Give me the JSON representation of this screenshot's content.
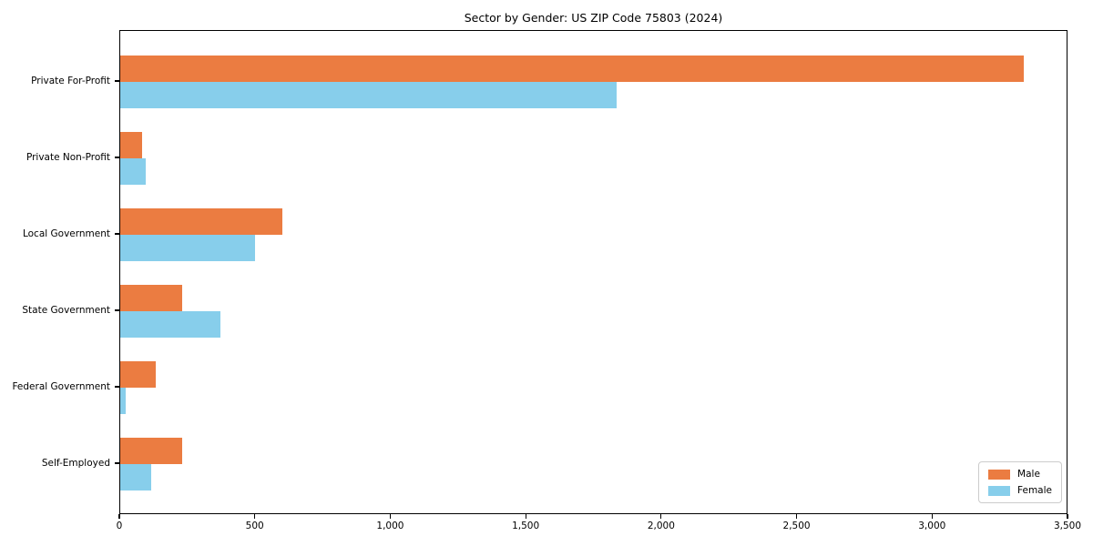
{
  "chart_data": {
    "type": "bar",
    "orientation": "horizontal",
    "title": "Sector by Gender: US ZIP Code 75803 (2024)",
    "categories": [
      "Private For-Profit",
      "Private Non-Profit",
      "Local Government",
      "State Government",
      "Federal Government",
      "Self-Employed"
    ],
    "series": [
      {
        "name": "Male",
        "color": "#eb7c41",
        "values": [
          3340,
          80,
          600,
          230,
          130,
          230
        ]
      },
      {
        "name": "Female",
        "color": "#87ceeb",
        "values": [
          1835,
          95,
          500,
          370,
          20,
          115
        ]
      }
    ],
    "xlim": [
      0,
      3500
    ],
    "x_ticks": [
      0,
      500,
      1000,
      1500,
      2000,
      2500,
      3000,
      3500
    ],
    "x_tick_labels": [
      "0",
      "500",
      "1,000",
      "1,500",
      "2,000",
      "2,500",
      "3,000",
      "3,500"
    ],
    "xlabel": "",
    "ylabel": "",
    "grid": false,
    "legend_position": "lower right",
    "plot_border_color": "#000000",
    "background_color": "#ffffff"
  }
}
